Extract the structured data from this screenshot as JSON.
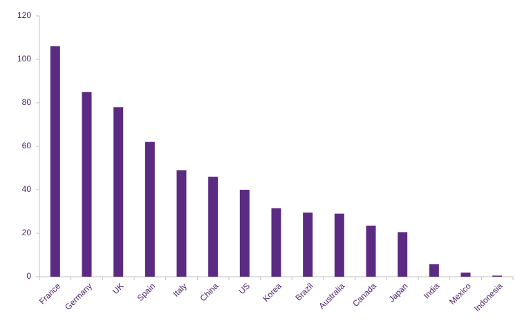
{
  "chart_data": {
    "type": "bar",
    "categories": [
      "France",
      "Germany",
      "UK",
      "Spain",
      "Italy",
      "China",
      "US",
      "Korea",
      "Brazil",
      "Australia",
      "Canada",
      "Japan",
      "India",
      "Mexico",
      "Indonesia"
    ],
    "values": [
      106,
      85,
      78,
      62,
      49,
      46,
      40,
      31.5,
      29.5,
      29,
      23.5,
      20.5,
      5.7,
      1.9,
      0.5
    ],
    "color": "#5b2a82",
    "ylim": [
      0,
      120
    ],
    "yticks": [
      0,
      20,
      40,
      60,
      80,
      100,
      120
    ],
    "grid": false
  }
}
